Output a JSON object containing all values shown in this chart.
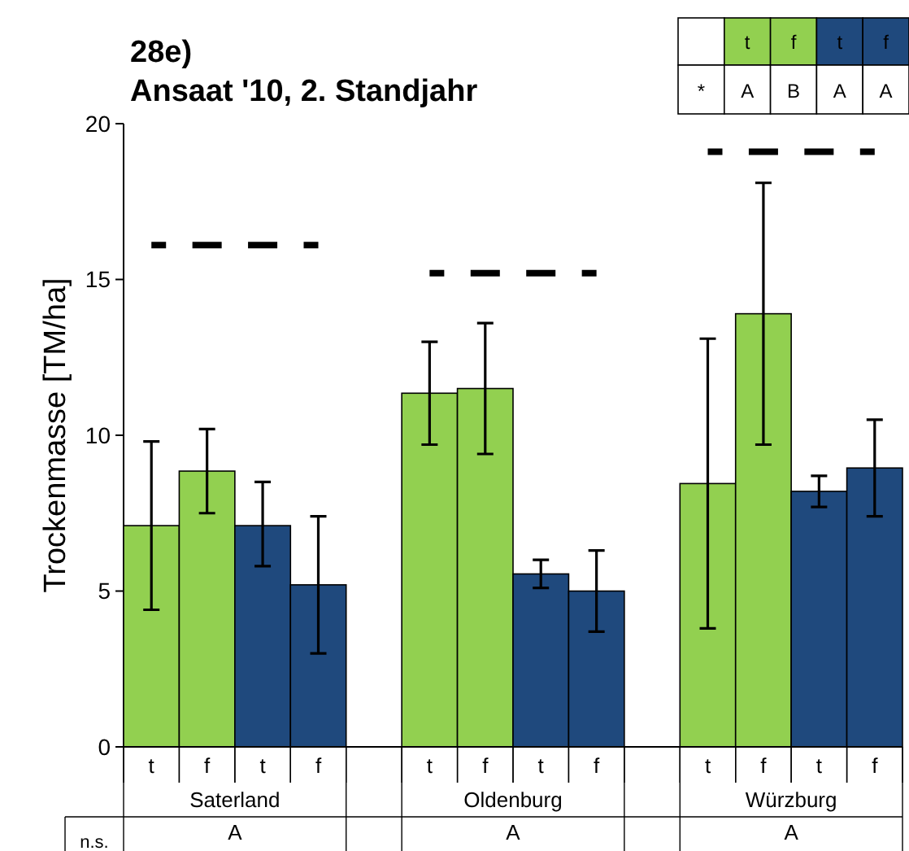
{
  "chart_data": {
    "type": "bar",
    "title": "28e)\nAnsaat '10, 2. Standjahr",
    "ylabel": "Trockenmasse [TM/ha]",
    "categories": [
      "t",
      "f",
      "t",
      "f",
      "t",
      "f",
      "t",
      "f",
      "t",
      "f",
      "t",
      "f"
    ],
    "ylim": [
      0,
      20
    ],
    "yticks": [
      0,
      5,
      10,
      15,
      20
    ],
    "series": [
      {
        "values": [
          7.1,
          8.85,
          7.1,
          5.2,
          11.35,
          11.5,
          5.55,
          5.0,
          8.45,
          13.9,
          8.2,
          8.95
        ],
        "colors": [
          "#92d050",
          "#92d050",
          "#1f497d",
          "#1f497d",
          "#92d050",
          "#92d050",
          "#1f497d",
          "#1f497d",
          "#92d050",
          "#92d050",
          "#1f497d",
          "#1f497d"
        ],
        "errors": [
          [
            4.4,
            9.8
          ],
          [
            7.5,
            10.2
          ],
          [
            5.8,
            8.5
          ],
          [
            3.0,
            7.4
          ],
          [
            9.7,
            13.0
          ],
          [
            9.4,
            13.6
          ],
          [
            5.1,
            6.0
          ],
          [
            3.7,
            6.3
          ],
          [
            3.8,
            13.1
          ],
          [
            9.7,
            18.1
          ],
          [
            7.7,
            8.7
          ],
          [
            7.4,
            10.5
          ]
        ]
      },
      {
        "type": "line",
        "color": "#000000",
        "line_style": "dashed",
        "values": [
          16.1,
          16.1,
          16.1,
          16.1,
          null,
          null,
          null,
          null,
          null,
          null,
          null,
          null
        ]
      },
      {
        "type": "line",
        "color": "#000000",
        "line_style": "dashed",
        "values": [
          null,
          null,
          null,
          null,
          15.2,
          15.2,
          15.2,
          15.2,
          null,
          null,
          null,
          null
        ]
      },
      {
        "type": "line",
        "color": "#000000",
        "line_style": "dashed",
        "values": [
          null,
          null,
          null,
          null,
          null,
          null,
          null,
          null,
          19.1,
          19.1,
          19.1,
          19.1
        ]
      }
    ],
    "annotations": [
      "Saterland",
      "Oldenburg",
      "Würzburg",
      "n.s.",
      "A",
      "A",
      "A",
      "*",
      "A",
      "B",
      "A",
      "A"
    ]
  }
}
